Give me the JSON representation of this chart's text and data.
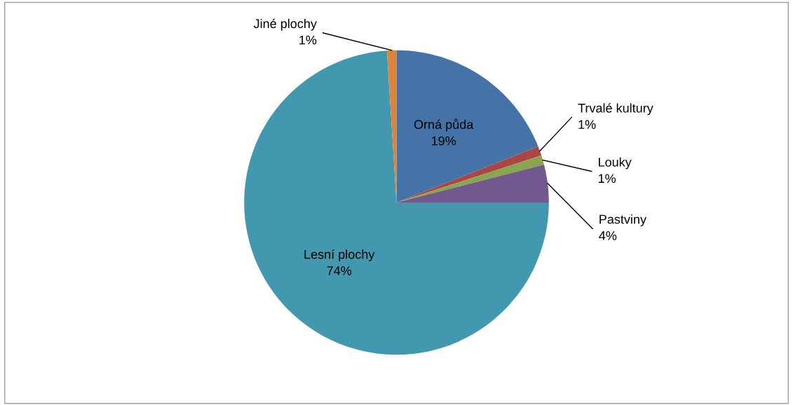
{
  "chart_data": {
    "type": "pie",
    "categories": [
      "Orná půda",
      "Trvalé kultury",
      "Louky",
      "Pastviny",
      "Lesní plochy",
      "Jiné plochy"
    ],
    "values": [
      19,
      1,
      1,
      4,
      74,
      1
    ],
    "value_labels": [
      "19%",
      "1%",
      "1%",
      "4%",
      "74%",
      "1%"
    ],
    "colors": [
      "#4572a7",
      "#aa4643",
      "#89a54e",
      "#71588f",
      "#4198af",
      "#db843d"
    ],
    "legend": false
  }
}
